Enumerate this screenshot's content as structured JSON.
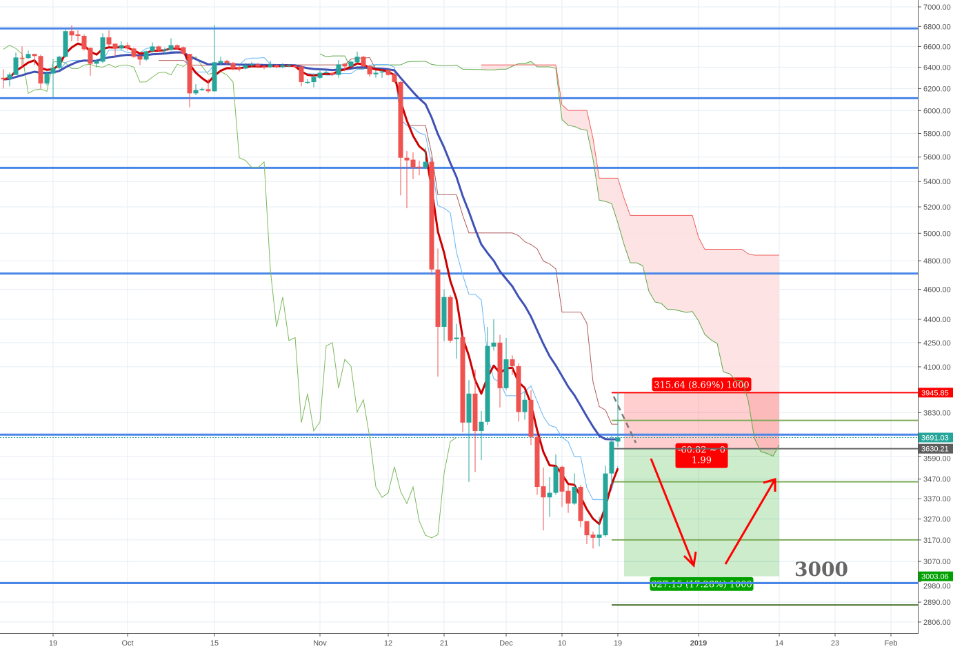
{
  "chart_data": {
    "type": "candlestick",
    "title": "",
    "y_scale": "log",
    "ylim": [
      2806,
      7000
    ],
    "grid": true,
    "colors": {
      "up": "#26a69a",
      "down": "#ef5350",
      "ema_fast": "#cc0000",
      "ema_slow": "#3f51b5",
      "tenkan": "#64b5f6",
      "kijun": "#b05a5a",
      "lagging": "#7cb95c",
      "senkou_a": "#5fa84a",
      "senkou_b": "#f06060",
      "cloud_bear": "#fde0e0",
      "cloud_bull": "#d8efd0",
      "hline": "#4a86e8"
    },
    "y_ticks": [
      7000,
      6800,
      6600,
      6400,
      6200,
      6000,
      5800,
      5600,
      5400,
      5200,
      5000,
      4800,
      4600,
      4400,
      4250,
      4100,
      3830,
      3590,
      3470,
      3370,
      3270,
      3170,
      3070,
      2980,
      2890,
      2806
    ],
    "x_ticks": [
      {
        "date": "2018-09-19",
        "label": "19"
      },
      {
        "date": "2018-10-01",
        "label": "Oct"
      },
      {
        "date": "2018-10-15",
        "label": "15"
      },
      {
        "date": "2018-11-01",
        "label": "Nov"
      },
      {
        "date": "2018-11-12",
        "label": "12"
      },
      {
        "date": "2018-11-21",
        "label": "21"
      },
      {
        "date": "2018-12-01",
        "label": "Dec"
      },
      {
        "date": "2018-12-10",
        "label": "10"
      },
      {
        "date": "2018-12-19",
        "label": "19"
      },
      {
        "date": "2019-01-01",
        "label": "2019",
        "bold": true
      },
      {
        "date": "2019-01-14",
        "label": "14"
      },
      {
        "date": "2019-01-23",
        "label": "23"
      },
      {
        "date": "2019-02-01",
        "label": "Feb"
      }
    ],
    "candles_fields": [
      "date",
      "open",
      "high",
      "low",
      "close"
    ],
    "candles": [
      [
        "2018-09-11",
        6300,
        6380,
        6200,
        6285
      ],
      [
        "2018-09-12",
        6290,
        6350,
        6220,
        6330
      ],
      [
        "2018-09-13",
        6327,
        6540,
        6327,
        6493
      ],
      [
        "2018-09-14",
        6490,
        6600,
        6400,
        6480
      ],
      [
        "2018-09-15",
        6487,
        6560,
        6480,
        6527
      ],
      [
        "2018-09-16",
        6527,
        6530,
        6420,
        6507
      ],
      [
        "2018-09-17",
        6507,
        6520,
        6200,
        6247
      ],
      [
        "2018-09-18",
        6247,
        6360,
        6230,
        6340
      ],
      [
        "2018-09-19",
        6340,
        6480,
        6120,
        6393
      ],
      [
        "2018-09-20",
        6393,
        6510,
        6380,
        6500
      ],
      [
        "2018-09-21",
        6500,
        6770,
        6490,
        6752
      ],
      [
        "2018-09-22",
        6752,
        6810,
        6650,
        6710
      ],
      [
        "2018-09-23",
        6720,
        6760,
        6650,
        6705
      ],
      [
        "2018-09-24",
        6705,
        6720,
        6560,
        6573
      ],
      [
        "2018-09-25",
        6587,
        6590,
        6320,
        6433
      ],
      [
        "2018-09-26",
        6433,
        6480,
        6400,
        6460
      ],
      [
        "2018-09-27",
        6453,
        6730,
        6440,
        6690
      ],
      [
        "2018-09-28",
        6690,
        6760,
        6600,
        6620
      ],
      [
        "2018-09-29",
        6627,
        6630,
        6500,
        6580
      ],
      [
        "2018-09-30",
        6580,
        6650,
        6560,
        6613
      ],
      [
        "2018-10-01",
        6613,
        6640,
        6560,
        6580
      ],
      [
        "2018-10-02",
        6580,
        6590,
        6490,
        6500
      ],
      [
        "2018-10-03",
        6507,
        6520,
        6420,
        6473
      ],
      [
        "2018-10-04",
        6473,
        6560,
        6460,
        6553
      ],
      [
        "2018-10-05",
        6553,
        6640,
        6540,
        6600
      ],
      [
        "2018-10-06",
        6600,
        6610,
        6550,
        6560
      ],
      [
        "2018-10-07",
        6560,
        6590,
        6520,
        6573
      ],
      [
        "2018-10-08",
        6567,
        6680,
        6560,
        6613
      ],
      [
        "2018-10-09",
        6613,
        6620,
        6570,
        6580
      ],
      [
        "2018-10-10",
        6593,
        6600,
        6520,
        6527
      ],
      [
        "2018-10-11",
        6527,
        6530,
        6030,
        6156
      ],
      [
        "2018-10-12",
        6156,
        6240,
        6140,
        6187
      ],
      [
        "2018-10-13",
        6190,
        6210,
        6180,
        6195
      ],
      [
        "2018-10-14",
        6194,
        6290,
        6160,
        6175
      ],
      [
        "2018-10-15",
        6175,
        6814,
        6170,
        6447
      ],
      [
        "2018-10-16",
        6440,
        6500,
        6420,
        6460
      ],
      [
        "2018-10-17",
        6460,
        6470,
        6420,
        6440
      ],
      [
        "2018-10-18",
        6440,
        6450,
        6370,
        6387
      ],
      [
        "2018-10-19",
        6393,
        6410,
        6360,
        6387
      ],
      [
        "2018-10-20",
        6387,
        6440,
        6380,
        6420
      ],
      [
        "2018-10-21",
        6420,
        6450,
        6400,
        6427
      ],
      [
        "2018-10-22",
        6427,
        6440,
        6390,
        6407
      ],
      [
        "2018-10-23",
        6407,
        6420,
        6380,
        6400
      ],
      [
        "2018-10-24",
        6400,
        6460,
        6390,
        6427
      ],
      [
        "2018-10-25",
        6420,
        6430,
        6390,
        6400
      ],
      [
        "2018-10-26",
        6400,
        6440,
        6390,
        6420
      ],
      [
        "2018-10-27",
        6413,
        6430,
        6400,
        6420
      ],
      [
        "2018-10-28",
        6413,
        6420,
        6390,
        6400
      ],
      [
        "2018-10-29",
        6407,
        6420,
        6220,
        6260
      ],
      [
        "2018-10-30",
        6260,
        6290,
        6240,
        6262
      ],
      [
        "2018-10-31",
        6260,
        6340,
        6210,
        6307
      ],
      [
        "2018-11-01",
        6300,
        6380,
        6290,
        6347
      ],
      [
        "2018-11-02",
        6347,
        6380,
        6340,
        6353
      ],
      [
        "2018-11-03",
        6347,
        6350,
        6320,
        6327
      ],
      [
        "2018-11-04",
        6327,
        6470,
        6300,
        6427
      ],
      [
        "2018-11-05",
        6433,
        6440,
        6360,
        6407
      ],
      [
        "2018-11-06",
        6407,
        6460,
        6400,
        6453
      ],
      [
        "2018-11-07",
        6447,
        6550,
        6440,
        6500
      ],
      [
        "2018-11-08",
        6500,
        6510,
        6400,
        6407
      ],
      [
        "2018-11-09",
        6413,
        6420,
        6310,
        6333
      ],
      [
        "2018-11-10",
        6333,
        6370,
        6300,
        6347
      ],
      [
        "2018-11-11",
        6355,
        6380,
        6300,
        6360
      ],
      [
        "2018-11-12",
        6373,
        6380,
        6320,
        6327
      ],
      [
        "2018-11-13",
        6333,
        6340,
        6250,
        6260
      ],
      [
        "2018-11-14",
        6260,
        6270,
        5290,
        5594
      ],
      [
        "2018-11-15",
        5594,
        5650,
        5190,
        5572
      ],
      [
        "2018-11-16",
        5578,
        5640,
        5420,
        5515
      ],
      [
        "2018-11-17",
        5520,
        5570,
        5450,
        5510
      ],
      [
        "2018-11-18",
        5515,
        5680,
        5500,
        5561
      ],
      [
        "2018-11-19",
        5561,
        5600,
        4700,
        4738
      ],
      [
        "2018-11-20",
        4738,
        4888,
        4040,
        4351
      ],
      [
        "2018-11-21",
        4351,
        4600,
        4260,
        4548
      ],
      [
        "2018-11-22",
        4548,
        4560,
        4250,
        4263
      ],
      [
        "2018-11-23",
        4272,
        4370,
        4150,
        4282
      ],
      [
        "2018-11-24",
        4285,
        4300,
        3720,
        3774
      ],
      [
        "2018-11-25",
        3774,
        4020,
        3455,
        3940
      ],
      [
        "2018-11-26",
        3940,
        4084,
        3507,
        3727
      ],
      [
        "2018-11-27",
        3727,
        3840,
        3570,
        3778
      ],
      [
        "2018-11-28",
        3778,
        4350,
        3760,
        4229
      ],
      [
        "2018-11-29",
        4225,
        4400,
        4200,
        4250
      ],
      [
        "2018-11-30",
        4250,
        4300,
        3860,
        3972
      ],
      [
        "2018-12-01",
        3972,
        4280,
        3960,
        4146
      ],
      [
        "2018-12-02",
        4146,
        4170,
        4050,
        4104
      ],
      [
        "2018-12-03",
        4104,
        4120,
        3780,
        3834
      ],
      [
        "2018-12-04",
        3834,
        3950,
        3790,
        3904
      ],
      [
        "2018-12-05",
        3904,
        3960,
        3650,
        3695
      ],
      [
        "2018-12-06",
        3695,
        3700,
        3390,
        3430
      ],
      [
        "2018-12-07",
        3433,
        3530,
        3215,
        3377
      ],
      [
        "2018-12-08",
        3377,
        3480,
        3280,
        3400
      ],
      [
        "2018-12-09",
        3400,
        3600,
        3390,
        3534
      ],
      [
        "2018-12-10",
        3534,
        3540,
        3330,
        3406
      ],
      [
        "2018-12-11",
        3410,
        3440,
        3300,
        3346
      ],
      [
        "2018-12-12",
        3346,
        3500,
        3340,
        3430
      ],
      [
        "2018-12-13",
        3430,
        3440,
        3230,
        3260
      ],
      [
        "2018-12-14",
        3260,
        3260,
        3150,
        3192
      ],
      [
        "2018-12-15",
        3195,
        3210,
        3130,
        3180
      ],
      [
        "2018-12-16",
        3180,
        3280,
        3140,
        3195
      ],
      [
        "2018-12-17",
        3192,
        3540,
        3185,
        3499
      ],
      [
        "2018-12-18",
        3499,
        3700,
        3440,
        3669
      ],
      [
        "2018-12-19",
        3669,
        3946,
        3640,
        3691
      ]
    ],
    "indicators": {
      "ema_fast_period": 5,
      "ema_slow_period": 21,
      "ichimoku": [
        9,
        26,
        52,
        26
      ]
    },
    "support_resistance_levels": [
      6779,
      6112,
      5511,
      4710,
      3707,
      2973
    ],
    "target_levels": {
      "start": "2018-12-18",
      "prices": [
        3786,
        3456,
        3170
      ],
      "dark_price": 2878
    },
    "price_badges": [
      {
        "price": 3945.85,
        "label": "3945.85",
        "color": "#ff0000"
      },
      {
        "price": 3691.03,
        "label": "3691.03",
        "color": "#26a69a"
      },
      {
        "price": 3630.21,
        "label": "3630.21",
        "color": "#5d5d5d"
      },
      {
        "price": 3003.06,
        "label": "3003.06",
        "color": "#00a000"
      }
    ],
    "position": {
      "type": "short",
      "entry": 3630.21,
      "stop": 3945.85,
      "target": 3003.06,
      "start": "2018-12-20",
      "end": "2019-01-14",
      "stop_label": "315.64 (8.69%) 1000",
      "center_label_1": "-60.82 ~ 0",
      "center_label_2": "1.99",
      "target_label": "627.15 (17.28%) 1000"
    },
    "annotation_text": "3000"
  }
}
